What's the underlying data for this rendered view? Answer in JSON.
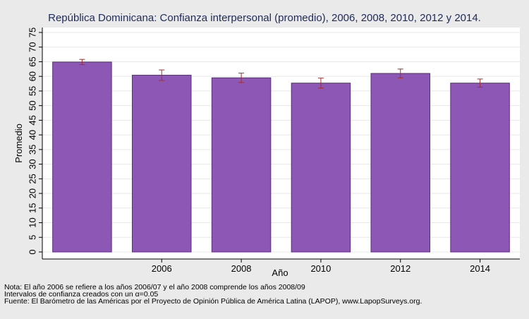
{
  "chart_data": {
    "type": "bar",
    "title": "República Dominicana: Confianza interpersonal (promedio), 2006, 2008, 2010, 2012 y 2014.",
    "xlabel": "Año",
    "ylabel": "Promedio",
    "categories": [
      "",
      "2006",
      "2008",
      "2010",
      "2012",
      "2014"
    ],
    "values": [
      64.9,
      60.4,
      59.5,
      57.7,
      61.0,
      57.7
    ],
    "ci_low": [
      64.0,
      58.6,
      57.9,
      56.0,
      59.5,
      56.3
    ],
    "ci_high": [
      65.8,
      62.2,
      61.1,
      59.4,
      62.5,
      59.1
    ],
    "ylim": [
      0,
      75
    ],
    "yticks": [
      0,
      5,
      10,
      15,
      20,
      25,
      30,
      35,
      40,
      45,
      50,
      55,
      60,
      65,
      70,
      75
    ],
    "grid": true,
    "bar_color": "#8d57b5",
    "bar_edge_color": "#5a2d7a",
    "errorbar_color": "#a0302e"
  },
  "notes": [
    "Nota: El año 2006 se refiere a los años 2006/07 y el año 2008 comprende los años 2008/09",
    "Intervalos de confianza creados con un α=0.05",
    "Fuente: El Barómetro de las Américas por el Proyecto de Opinión Pública de América Latina (LAPOP), www.LapopSurveys.org."
  ]
}
